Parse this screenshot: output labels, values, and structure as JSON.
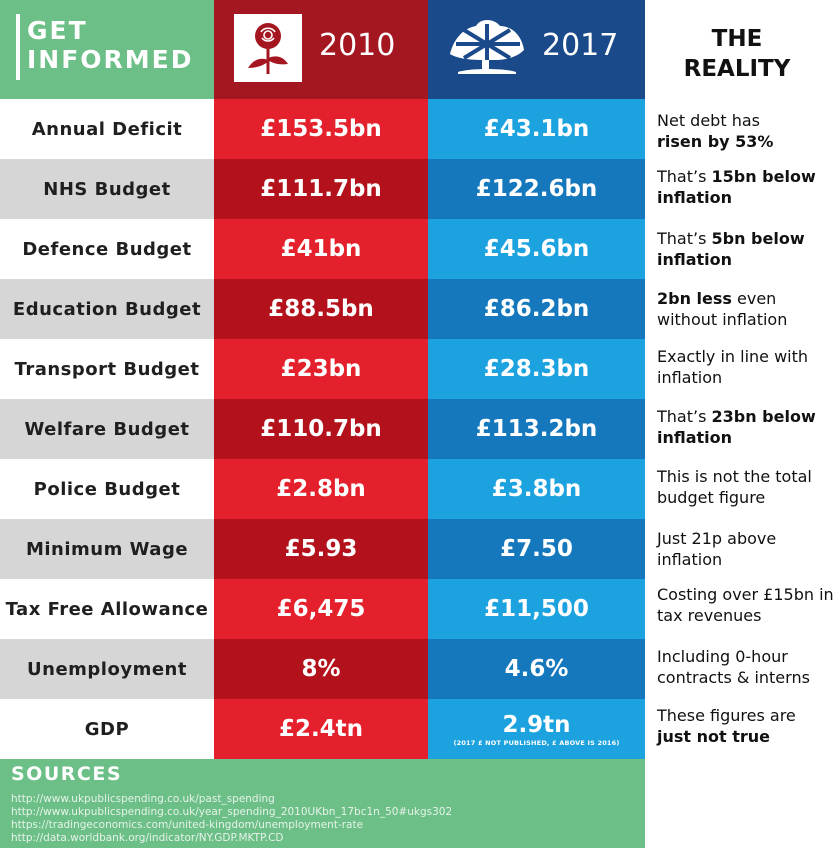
{
  "header": {
    "title_line1": "GET",
    "title_line2": "INFORMED",
    "year_a": "2010",
    "year_b": "2017"
  },
  "rows": [
    {
      "label": "Annual Deficit",
      "v2010": "£153.5bn",
      "v2017": "£43.1bn"
    },
    {
      "label": "NHS Budget",
      "v2010": "£111.7bn",
      "v2017": "£122.6bn"
    },
    {
      "label": "Defence Budget",
      "v2010": "£41bn",
      "v2017": "£45.6bn"
    },
    {
      "label": "Education Budget",
      "v2010": "£88.5bn",
      "v2017": "£86.2bn"
    },
    {
      "label": "Transport Budget",
      "v2010": "£23bn",
      "v2017": "£28.3bn"
    },
    {
      "label": "Welfare Budget",
      "v2010": "£110.7bn",
      "v2017": "£113.2bn"
    },
    {
      "label": "Police Budget",
      "v2010": "£2.8bn",
      "v2017": "£3.8bn"
    },
    {
      "label": "Minimum Wage",
      "v2010": "£5.93",
      "v2017": "£7.50"
    },
    {
      "label": "Tax Free Allowance",
      "v2010": "£6,475",
      "v2017": "£11,500"
    },
    {
      "label": "Unemployment",
      "v2010": "8%",
      "v2017": "4.6%"
    },
    {
      "label": "GDP",
      "v2010": "£2.4tn",
      "v2017": "2.9tn",
      "v2017_note": "(2017 £ NOT PUBLISHED, £ ABOVE IS 2016)"
    }
  ],
  "sources": {
    "heading": "SOURCES",
    "links": [
      "http://www.ukpublicspending.co.uk/past_spending",
      "http://www.ukpublicspending.co.uk/year_spending_2010UKbn_17bc1n_50#ukgs302",
      "https://tradingeconomics.com/united-kingdom/unemployment-rate",
      "http://data.worldbank.org/indicator/NY.GDP.MKTP.CD"
    ]
  },
  "reality": {
    "title_line1": "THE",
    "title_line2": "REALITY",
    "notes": [
      {
        "pre": "Net debt has",
        "bold": "risen by 53%",
        "post": ""
      },
      {
        "pre": "That’s ",
        "bold": "15bn below inflation",
        "post": ""
      },
      {
        "pre": "That’s ",
        "bold": "5bn below inflation",
        "post": ""
      },
      {
        "pre": "",
        "bold": "2bn less",
        "post": " even without inflation"
      },
      {
        "pre": "Exactly in line with inflation",
        "bold": "",
        "post": ""
      },
      {
        "pre": "That’s ",
        "bold": "23bn below inflation",
        "post": ""
      },
      {
        "pre": "This is not the total budget figure",
        "bold": "",
        "post": ""
      },
      {
        "pre": "Just 21p above inflation",
        "bold": "",
        "post": ""
      },
      {
        "pre": "Costing over £15bn in tax revenues",
        "bold": "",
        "post": ""
      },
      {
        "pre": "Including 0-hour contracts & interns",
        "bold": "",
        "post": ""
      },
      {
        "pre": "These figures are",
        "bold": "just not true",
        "post": ""
      }
    ]
  },
  "colors": {
    "green": "#6cbf86",
    "red_header": "#a41620",
    "blue_header": "#1a4a8a",
    "red_light": "#e3202b",
    "red_dark": "#b3121d",
    "blue_light": "#1da2e0",
    "blue_dark": "#1578bd"
  },
  "icons": {
    "labour": "rose-logo-icon",
    "conservative": "tree-logo-icon"
  }
}
